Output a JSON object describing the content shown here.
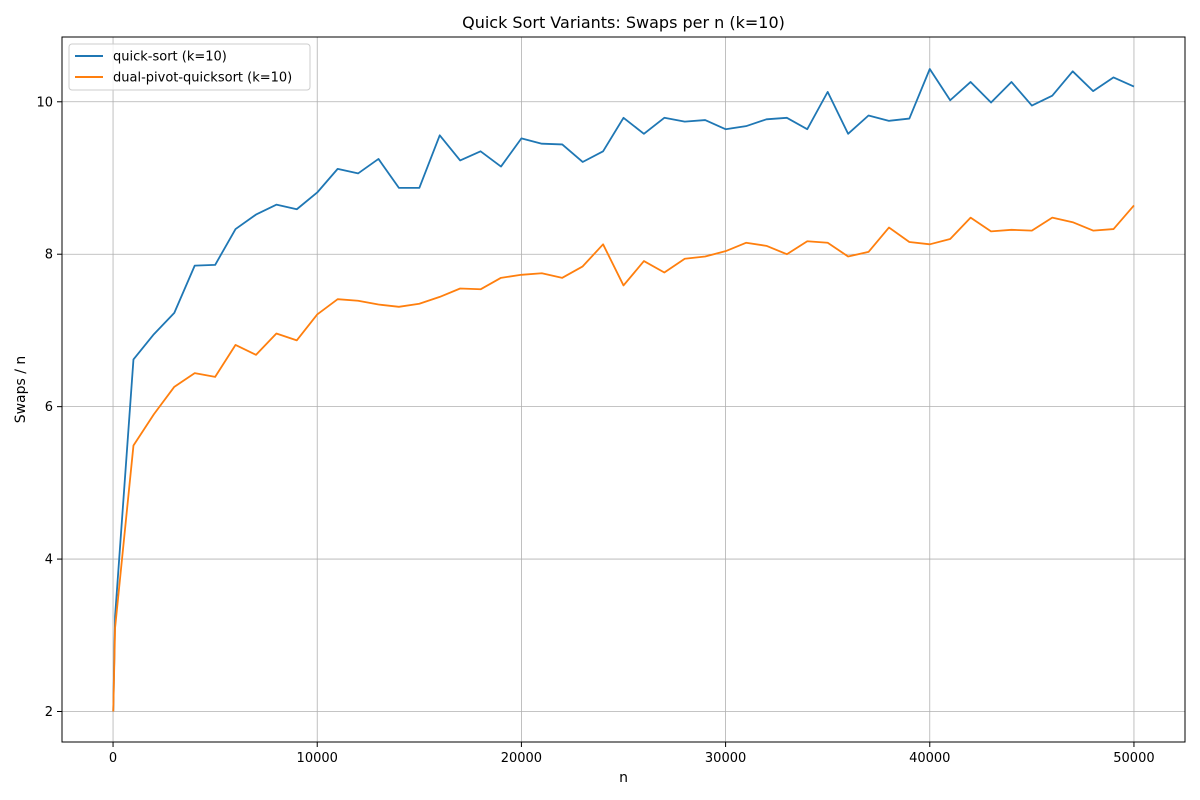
{
  "chart_data": {
    "type": "line",
    "title": "Quick Sort Variants: Swaps per n (k=10)",
    "xlabel": "n",
    "ylabel": "Swaps / n",
    "xlim": [
      -2500,
      52500
    ],
    "ylim": [
      1.6,
      10.85
    ],
    "xticks": [
      0,
      10000,
      20000,
      30000,
      40000,
      50000
    ],
    "yticks": [
      2,
      4,
      6,
      8,
      10
    ],
    "grid": true,
    "legend_position": "top-left",
    "x": [
      10,
      100,
      1000,
      2000,
      3000,
      4000,
      5000,
      6000,
      7000,
      8000,
      9000,
      10000,
      11000,
      12000,
      13000,
      14000,
      15000,
      16000,
      17000,
      18000,
      19000,
      20000,
      21000,
      22000,
      23000,
      24000,
      25000,
      26000,
      27000,
      28000,
      29000,
      30000,
      31000,
      32000,
      33000,
      34000,
      35000,
      36000,
      37000,
      38000,
      39000,
      40000,
      41000,
      42000,
      43000,
      44000,
      45000,
      46000,
      47000,
      48000,
      49000,
      50000
    ],
    "series": [
      {
        "name": "quick-sort (k=10)",
        "color": "#1f77b4",
        "values": [
          2.0,
          3.25,
          6.62,
          6.95,
          7.23,
          7.85,
          7.86,
          8.33,
          8.52,
          8.65,
          8.59,
          8.81,
          9.12,
          9.06,
          9.25,
          8.87,
          8.87,
          9.56,
          9.23,
          9.35,
          9.15,
          9.52,
          9.45,
          9.44,
          9.21,
          9.35,
          9.79,
          9.58,
          9.79,
          9.74,
          9.76,
          9.64,
          9.68,
          9.77,
          9.79,
          9.64,
          10.13,
          9.58,
          9.82,
          9.75,
          9.78,
          10.43,
          10.02,
          10.26,
          9.99,
          10.26,
          9.95,
          10.08,
          10.4,
          10.14,
          10.32,
          10.2
        ]
      },
      {
        "name": "dual-pivot-quicksort (k=10)",
        "color": "#ff7f0e",
        "values": [
          2.0,
          3.1,
          5.49,
          5.9,
          6.26,
          6.44,
          6.39,
          6.81,
          6.68,
          6.96,
          6.87,
          7.21,
          7.41,
          7.39,
          7.34,
          7.31,
          7.35,
          7.44,
          7.55,
          7.54,
          7.69,
          7.73,
          7.75,
          7.69,
          7.84,
          8.13,
          7.59,
          7.91,
          7.76,
          7.94,
          7.97,
          8.04,
          8.15,
          8.11,
          8.0,
          8.17,
          8.15,
          7.97,
          8.03,
          8.35,
          8.16,
          8.13,
          8.2,
          8.48,
          8.3,
          8.32,
          8.31,
          8.48,
          8.42,
          8.31,
          8.33,
          8.64
        ]
      }
    ]
  }
}
